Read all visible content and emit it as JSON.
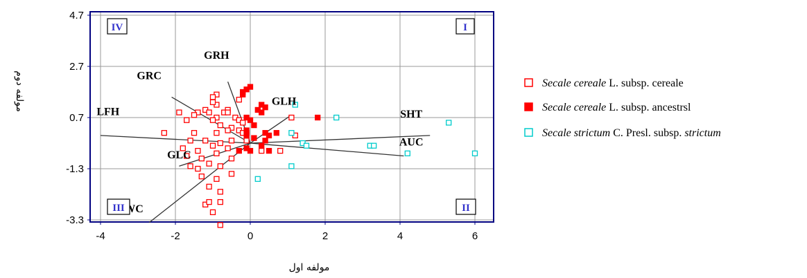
{
  "chart_data": {
    "type": "scatter",
    "xlabel": "مولفه اول",
    "ylabel": "مولفه دوم",
    "xlim": [
      -4,
      6.4
    ],
    "ylim": [
      -3.6,
      4.7
    ],
    "x_ticks": [
      -4,
      -2,
      0,
      2,
      4,
      6
    ],
    "y_ticks": [
      4.7,
      2.7,
      0.7,
      -1.3,
      -3.3
    ],
    "grid": true,
    "legend_position": "right",
    "quadrants": [
      {
        "label": "I",
        "corner": "top-right"
      },
      {
        "label": "II",
        "corner": "bottom-right"
      },
      {
        "label": "III",
        "corner": "bottom-left"
      },
      {
        "label": "IV",
        "corner": "top-left"
      }
    ],
    "vectors": [
      {
        "name": "GRH",
        "x": -0.6,
        "y": 2.4
      },
      {
        "name": "GRC",
        "x": -2.1,
        "y": 1.8
      },
      {
        "name": "GLH",
        "x": 1.1,
        "y": 1.1
      },
      {
        "name": "LFH",
        "x": -4.0,
        "y": 0.3
      },
      {
        "name": "SHT",
        "x": 4.8,
        "y": 0.3
      },
      {
        "name": "AUC",
        "x": 4.1,
        "y": -0.5
      },
      {
        "name": "GLC",
        "x": -1.9,
        "y": -0.9
      },
      {
        "name": "AWC",
        "x": -2.7,
        "y": -3.1
      }
    ],
    "vector_label_positions": {
      "GRH": [
        -0.9,
        3.0
      ],
      "GRC": [
        -2.7,
        2.2
      ],
      "GLH": [
        0.9,
        1.2
      ],
      "LFH": [
        -3.8,
        0.8
      ],
      "SHT": [
        4.3,
        0.7
      ],
      "AUC": [
        4.3,
        -0.4
      ],
      "GLC": [
        -1.9,
        -0.9
      ],
      "AWC": [
        -3.2,
        -3.0
      ]
    },
    "series": [
      {
        "name": "Secale cereale L. subsp. cereale",
        "legend": {
          "italic": "Secale cereale",
          "rest": " L. subsp. cereale",
          "italic2": ""
        },
        "marker": "open-square",
        "color": "#ff0000",
        "points": [
          [
            -0.9,
            1.6
          ],
          [
            -1.0,
            1.5
          ],
          [
            -0.9,
            1.2
          ],
          [
            -1.0,
            1.3
          ],
          [
            -0.3,
            1.4
          ],
          [
            -0.6,
            1.0
          ],
          [
            -0.7,
            0.9
          ],
          [
            -1.9,
            0.9
          ],
          [
            -1.4,
            0.9
          ],
          [
            -1.2,
            1.0
          ],
          [
            -1.5,
            0.8
          ],
          [
            -1.1,
            0.9
          ],
          [
            -0.9,
            0.7
          ],
          [
            -0.6,
            0.9
          ],
          [
            -0.4,
            0.7
          ],
          [
            -0.3,
            0.6
          ],
          [
            -0.2,
            0.5
          ],
          [
            -1.7,
            0.6
          ],
          [
            -1.0,
            0.6
          ],
          [
            -0.8,
            0.4
          ],
          [
            -0.5,
            0.3
          ],
          [
            -0.3,
            0.2
          ],
          [
            -2.3,
            0.1
          ],
          [
            -1.5,
            0.1
          ],
          [
            -0.9,
            0.1
          ],
          [
            -0.6,
            0.2
          ],
          [
            -0.2,
            0.1
          ],
          [
            -1.6,
            -0.2
          ],
          [
            -1.2,
            -0.2
          ],
          [
            -0.8,
            -0.3
          ],
          [
            -0.5,
            -0.2
          ],
          [
            -0.1,
            -0.2
          ],
          [
            -1.8,
            -0.5
          ],
          [
            -1.4,
            -0.6
          ],
          [
            -1.0,
            -0.4
          ],
          [
            -0.6,
            -0.5
          ],
          [
            -1.7,
            -0.8
          ],
          [
            -1.3,
            -0.9
          ],
          [
            -0.9,
            -0.7
          ],
          [
            -0.5,
            -0.9
          ],
          [
            -1.6,
            -1.2
          ],
          [
            -1.4,
            -1.3
          ],
          [
            -1.1,
            -1.1
          ],
          [
            -0.8,
            -1.2
          ],
          [
            -1.3,
            -1.6
          ],
          [
            -0.9,
            -1.7
          ],
          [
            -0.5,
            -1.5
          ],
          [
            -1.1,
            -2.0
          ],
          [
            -0.8,
            -2.2
          ],
          [
            -1.2,
            -2.7
          ],
          [
            -1.1,
            -2.6
          ],
          [
            -0.8,
            -2.6
          ],
          [
            -1.0,
            -3.0
          ],
          [
            -0.8,
            -3.5
          ],
          [
            0.3,
            -0.6
          ],
          [
            0.8,
            -0.6
          ],
          [
            1.1,
            0.7
          ],
          [
            1.2,
            0.0
          ]
        ]
      },
      {
        "name": "Secale cereale L. subsp. ancestrsl",
        "legend": {
          "italic": "Secale cereale",
          "rest": " L. subsp. ancestrsl",
          "italic2": ""
        },
        "marker": "filled-square",
        "color": "#ff0000",
        "points": [
          [
            -0.2,
            1.7
          ],
          [
            -0.1,
            1.8
          ],
          [
            0.0,
            1.9
          ],
          [
            -0.2,
            1.6
          ],
          [
            0.3,
            1.2
          ],
          [
            0.4,
            1.1
          ],
          [
            0.2,
            1.0
          ],
          [
            0.3,
            0.9
          ],
          [
            1.8,
            0.7
          ],
          [
            -0.1,
            0.7
          ],
          [
            0.0,
            0.6
          ],
          [
            0.1,
            0.4
          ],
          [
            0.4,
            0.1
          ],
          [
            0.7,
            0.1
          ],
          [
            0.5,
            0.0
          ],
          [
            -0.1,
            0.1
          ],
          [
            -0.1,
            0.0
          ],
          [
            0.1,
            -0.1
          ],
          [
            0.4,
            -0.2
          ],
          [
            0.3,
            -0.4
          ],
          [
            -0.1,
            -0.5
          ],
          [
            -0.3,
            -0.6
          ],
          [
            0.0,
            -0.6
          ],
          [
            0.5,
            -0.6
          ],
          [
            -0.1,
            0.2
          ]
        ]
      },
      {
        "name": "Secale strictum C. Presl. subsp. strictum",
        "legend": {
          "italic": "Secale strictum",
          "rest": " C. Presl. subsp. ",
          "italic2": "strictum"
        },
        "marker": "open-square",
        "color": "#00cccc",
        "points": [
          [
            1.2,
            1.2
          ],
          [
            2.3,
            0.7
          ],
          [
            1.1,
            0.1
          ],
          [
            5.3,
            0.5
          ],
          [
            1.4,
            -0.3
          ],
          [
            1.5,
            -0.4
          ],
          [
            3.2,
            -0.4
          ],
          [
            3.3,
            -0.4
          ],
          [
            4.2,
            -0.7
          ],
          [
            6.0,
            -0.7
          ],
          [
            1.1,
            -1.2
          ],
          [
            0.2,
            -1.7
          ]
        ]
      }
    ]
  }
}
